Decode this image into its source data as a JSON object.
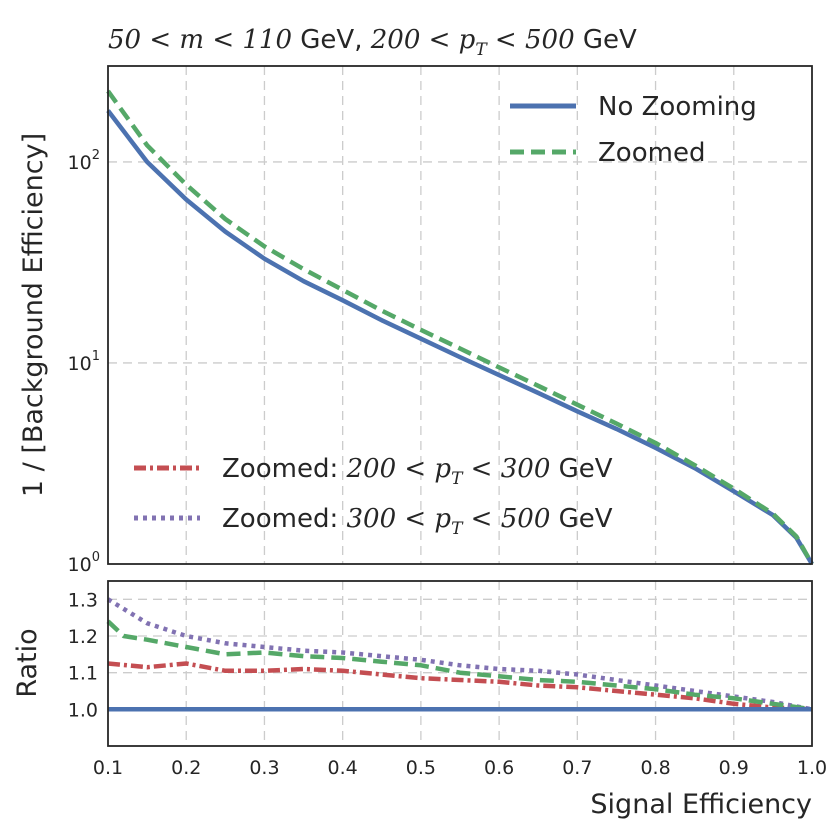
{
  "chart_data": {
    "type": "line",
    "title": "50 < m < 110 GeV, 200 < p_T < 500 GeV",
    "title_parts": [
      "50 < m < 110",
      "GeV,",
      "200 < p",
      "T",
      " < 500",
      "GeV"
    ],
    "xlabel": "Signal Efficiency",
    "colors": {
      "blue": "#4c72b0",
      "green": "#55a868",
      "red": "#c44e52",
      "purple": "#8172b2",
      "axis": "#262626",
      "grid": "#cccccc"
    },
    "top_panel": {
      "ylabel": "1 / [Background Efficiency]",
      "yscale": "log",
      "ylim": [
        1,
        300
      ],
      "xlim": [
        0.1,
        1.0
      ],
      "ytick_labels": [
        {
          "value": 1,
          "base": "10",
          "exp": "0"
        },
        {
          "value": 10,
          "base": "10",
          "exp": "1"
        },
        {
          "value": 100,
          "base": "10",
          "exp": "2"
        }
      ],
      "series": [
        {
          "name": "No Zooming",
          "color": "#4c72b0",
          "style": "solid",
          "x": [
            0.1,
            0.15,
            0.2,
            0.25,
            0.3,
            0.35,
            0.4,
            0.45,
            0.5,
            0.55,
            0.6,
            0.65,
            0.7,
            0.75,
            0.8,
            0.85,
            0.9,
            0.95,
            0.98,
            1.0
          ],
          "y": [
            180,
            100,
            65,
            45,
            33,
            25.5,
            20.5,
            16.3,
            13.2,
            10.7,
            8.7,
            7.1,
            5.75,
            4.7,
            3.78,
            3.0,
            2.3,
            1.75,
            1.35,
            1.0
          ]
        },
        {
          "name": "Zoomed",
          "color": "#55a868",
          "style": "dashed",
          "x": [
            0.1,
            0.15,
            0.2,
            0.25,
            0.3,
            0.35,
            0.4,
            0.45,
            0.5,
            0.55,
            0.6,
            0.65,
            0.7,
            0.75,
            0.8,
            0.85,
            0.9,
            0.95,
            0.98,
            1.0
          ],
          "y": [
            225,
            121,
            77,
            52,
            38,
            29.3,
            23.1,
            18.2,
            14.6,
            11.8,
            9.5,
            7.7,
            6.2,
            5.0,
            4.0,
            3.1,
            2.37,
            1.78,
            1.37,
            1.0
          ]
        }
      ],
      "legend_main": [
        "No Zooming",
        "Zoomed"
      ],
      "legend_sub": [
        {
          "label": "Zoomed:",
          "math_a": "200 < p",
          "sub": "T",
          "math_b": " < 300",
          "unit": "GeV",
          "color": "#c44e52",
          "style": "dashdot"
        },
        {
          "label": "Zoomed:",
          "math_a": "300 < p",
          "sub": "T",
          "math_b": " < 500",
          "unit": "GeV",
          "color": "#8172b2",
          "style": "dotted"
        }
      ]
    },
    "bottom_panel": {
      "ylabel": "Ratio",
      "ylim": [
        0.9,
        1.35
      ],
      "xlim": [
        0.1,
        1.0
      ],
      "yticks": [
        1.0,
        1.1,
        1.2,
        1.3
      ],
      "ytick_labels": [
        "1.0",
        "1.1",
        "1.2",
        "1.3"
      ],
      "xticks": [
        0.1,
        0.2,
        0.3,
        0.4,
        0.5,
        0.6,
        0.7,
        0.8,
        0.9,
        1.0
      ],
      "xtick_labels": [
        "0.1",
        "0.2",
        "0.3",
        "0.4",
        "0.5",
        "0.6",
        "0.7",
        "0.8",
        "0.9",
        "1.0"
      ],
      "series": [
        {
          "name": "No Zooming",
          "color": "#4c72b0",
          "style": "solid",
          "x": [
            0.1,
            1.0
          ],
          "y": [
            1.0,
            1.0
          ]
        },
        {
          "name": "Zoomed",
          "color": "#55a868",
          "style": "dashed",
          "x": [
            0.1,
            0.12,
            0.15,
            0.2,
            0.25,
            0.3,
            0.35,
            0.4,
            0.45,
            0.5,
            0.55,
            0.6,
            0.65,
            0.7,
            0.75,
            0.8,
            0.85,
            0.9,
            0.95,
            1.0
          ],
          "y": [
            1.24,
            1.2,
            1.19,
            1.17,
            1.15,
            1.155,
            1.145,
            1.14,
            1.13,
            1.12,
            1.1,
            1.09,
            1.08,
            1.075,
            1.065,
            1.055,
            1.04,
            1.03,
            1.015,
            1.0
          ]
        },
        {
          "name": "Zoomed: 200 < p_T < 300 GeV",
          "color": "#c44e52",
          "style": "dashdot",
          "x": [
            0.1,
            0.15,
            0.2,
            0.25,
            0.3,
            0.35,
            0.4,
            0.45,
            0.5,
            0.55,
            0.6,
            0.65,
            0.7,
            0.75,
            0.8,
            0.85,
            0.9,
            0.95,
            1.0
          ],
          "y": [
            1.125,
            1.115,
            1.125,
            1.105,
            1.105,
            1.11,
            1.105,
            1.095,
            1.085,
            1.08,
            1.075,
            1.065,
            1.06,
            1.05,
            1.04,
            1.03,
            1.015,
            1.005,
            1.0
          ]
        },
        {
          "name": "Zoomed: 300 < p_T < 500 GeV",
          "color": "#8172b2",
          "style": "dotted",
          "x": [
            0.1,
            0.15,
            0.2,
            0.25,
            0.3,
            0.35,
            0.4,
            0.45,
            0.5,
            0.55,
            0.6,
            0.65,
            0.7,
            0.75,
            0.8,
            0.85,
            0.9,
            0.95,
            1.0
          ],
          "y": [
            1.3,
            1.235,
            1.2,
            1.18,
            1.17,
            1.16,
            1.155,
            1.145,
            1.135,
            1.12,
            1.11,
            1.105,
            1.095,
            1.08,
            1.065,
            1.05,
            1.035,
            1.02,
            1.0
          ]
        }
      ]
    }
  }
}
